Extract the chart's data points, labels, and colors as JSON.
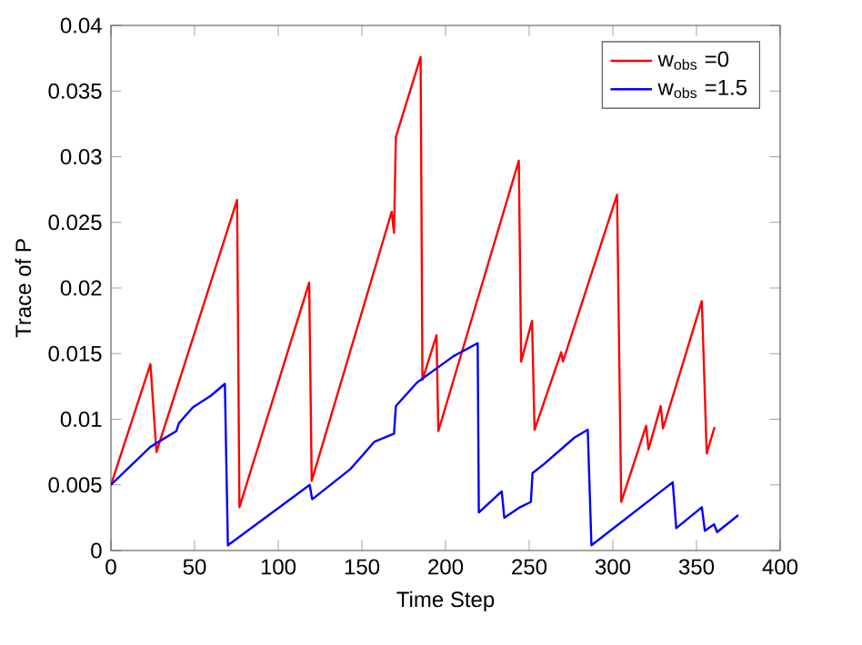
{
  "chart_data": {
    "type": "line",
    "xlabel": "Time Step",
    "ylabel": "Trace of P",
    "xlim": [
      0,
      400
    ],
    "ylim": [
      0,
      0.04
    ],
    "xticks": [
      0,
      50,
      100,
      150,
      200,
      250,
      300,
      350,
      400
    ],
    "yticks": [
      0,
      0.005,
      0.01,
      0.015,
      0.02,
      0.025,
      0.03,
      0.035,
      0.04
    ],
    "legend": "top right",
    "grid": false,
    "marker": "none",
    "line_style": "solid",
    "series": [
      {
        "name": "w$_{obs}$ =0",
        "color": "#ff0000",
        "x": [
          0,
          23.6,
          27.2,
          75.4,
          76.8,
          118.5,
          120,
          167.8,
          169.2,
          170.3,
          185.1,
          186.2,
          194.6,
          195.7,
          243.8,
          245.2,
          251.7,
          253.2,
          269.1,
          270.2,
          302.5,
          305,
          319.9,
          321.3,
          328.6,
          330,
          353.2,
          356.1,
          360.8
        ],
        "values": [
          0.005,
          0.0142,
          0.0075,
          0.0267,
          0.0033,
          0.0204,
          0.0053,
          0.0258,
          0.0242,
          0.0315,
          0.0376,
          0.013,
          0.0164,
          0.0091,
          0.0297,
          0.0144,
          0.0175,
          0.0092,
          0.0151,
          0.0144,
          0.0271,
          0.0037,
          0.0095,
          0.0077,
          0.011,
          0.0093,
          0.019,
          0.0074,
          0.0094
        ]
      },
      {
        "name": "w$_{obs}$ =1.5",
        "color": "#0000ff",
        "x": [
          0,
          23.6,
          39.1,
          40.6,
          48.9,
          59.8,
          68.1,
          69.9,
          118.8,
          120.3,
          143.1,
          157.6,
          169.2,
          170.3,
          183,
          204.7,
          219.2,
          219.9,
          233.6,
          235.1,
          244.5,
          251,
          252,
          259,
          277,
          285,
          287.2,
          335.8,
          337.9,
          353.2,
          355,
          360.5,
          362.3,
          375
        ],
        "values": [
          0.005,
          0.0079,
          0.0091,
          0.0097,
          0.0109,
          0.0118,
          0.0127,
          0.0004,
          0.005,
          0.0039,
          0.0062,
          0.0083,
          0.0089,
          0.011,
          0.0128,
          0.0148,
          0.0158,
          0.0029,
          0.0045,
          0.0025,
          0.0033,
          0.0037,
          0.0059,
          0.0066,
          0.0086,
          0.0092,
          0.0004,
          0.0052,
          0.0017,
          0.0033,
          0.0015,
          0.002,
          0.0014,
          0.0027
        ]
      }
    ]
  }
}
